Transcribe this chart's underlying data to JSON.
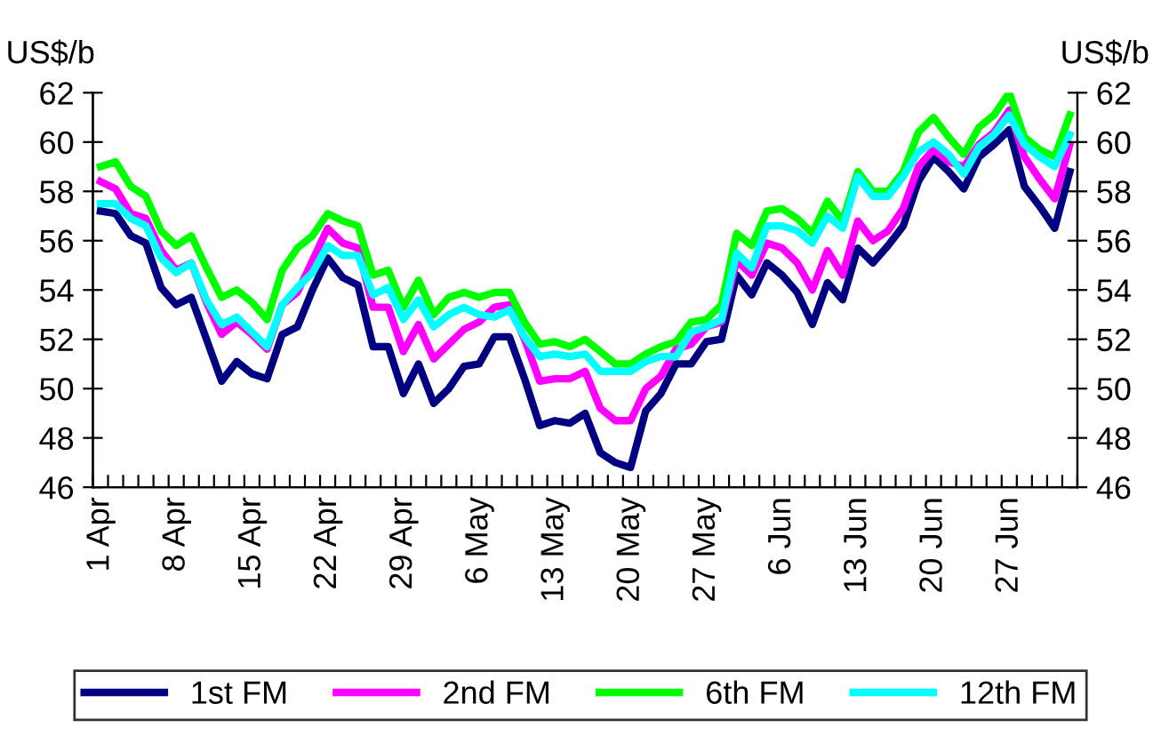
{
  "chart_data": {
    "type": "line",
    "ylabel": "US$/b",
    "y2label": "US$/b",
    "categories": [
      "1 Apr",
      null,
      null,
      null,
      null,
      "8 Apr",
      null,
      null,
      null,
      null,
      "15 Apr",
      null,
      null,
      null,
      null,
      "22 Apr",
      null,
      null,
      null,
      null,
      "29 Apr",
      null,
      null,
      null,
      null,
      "6 May",
      null,
      null,
      null,
      null,
      "13 May",
      null,
      null,
      null,
      null,
      "20 May",
      null,
      null,
      null,
      null,
      "27 May",
      null,
      null,
      null,
      null,
      "6 Jun",
      null,
      null,
      null,
      null,
      "13 Jun",
      null,
      null,
      null,
      null,
      "20 Jun",
      null,
      null,
      null,
      null,
      "27 Jun",
      null,
      null,
      null,
      null
    ],
    "series": [
      {
        "name": "1st FM",
        "color": "#000080",
        "values": [
          57.2,
          57.1,
          56.2,
          55.9,
          54.1,
          53.4,
          53.7,
          52.0,
          50.3,
          51.1,
          50.6,
          50.4,
          52.2,
          52.5,
          54.0,
          55.3,
          54.5,
          54.2,
          51.7,
          51.7,
          49.8,
          51.0,
          49.4,
          50.0,
          50.9,
          51.0,
          52.1,
          52.1,
          50.4,
          48.5,
          48.7,
          48.6,
          49.0,
          47.4,
          47.0,
          46.8,
          49.1,
          49.8,
          51.0,
          51.0,
          51.9,
          52.0,
          54.6,
          53.8,
          55.1,
          54.6,
          53.9,
          52.6,
          54.3,
          53.6,
          55.7,
          55.1,
          55.8,
          56.6,
          58.4,
          59.4,
          58.8,
          58.1,
          59.4,
          59.9,
          60.5,
          58.2,
          57.4,
          56.5,
          58.8
        ]
      },
      {
        "name": "2nd FM",
        "color": "#ff00ff",
        "values": [
          58.4,
          58.1,
          57.1,
          56.9,
          55.6,
          54.8,
          55.1,
          53.5,
          52.2,
          52.7,
          52.2,
          51.6,
          53.4,
          53.9,
          55.2,
          56.5,
          55.9,
          55.7,
          53.3,
          53.3,
          51.5,
          52.6,
          51.2,
          51.8,
          52.4,
          52.7,
          53.3,
          53.4,
          52.0,
          50.3,
          50.4,
          50.4,
          50.7,
          49.2,
          48.7,
          48.7,
          50.0,
          50.5,
          51.6,
          51.8,
          52.5,
          52.7,
          55.2,
          54.6,
          55.9,
          55.7,
          55.1,
          54.0,
          55.6,
          54.6,
          56.8,
          56.0,
          56.4,
          57.3,
          59.0,
          59.7,
          59.2,
          59.0,
          59.9,
          60.4,
          61.3,
          59.4,
          58.5,
          57.7,
          59.9
        ]
      },
      {
        "name": "6th FM",
        "color": "#00ff00",
        "values": [
          59.0,
          59.2,
          58.2,
          57.8,
          56.4,
          55.8,
          56.2,
          54.9,
          53.7,
          54.0,
          53.5,
          52.8,
          54.8,
          55.7,
          56.2,
          57.1,
          56.8,
          56.6,
          54.6,
          54.8,
          53.3,
          54.4,
          53.0,
          53.7,
          53.9,
          53.7,
          53.9,
          53.9,
          52.7,
          51.8,
          51.9,
          51.7,
          52.0,
          51.5,
          51.0,
          51.0,
          51.4,
          51.7,
          51.9,
          52.7,
          52.8,
          53.4,
          56.3,
          55.8,
          57.2,
          57.3,
          56.9,
          56.3,
          57.6,
          56.8,
          58.8,
          58.0,
          58.0,
          58.8,
          60.4,
          61.0,
          60.2,
          59.5,
          60.6,
          61.1,
          62.0,
          60.2,
          59.7,
          59.4,
          61.1
        ]
      },
      {
        "name": "12th FM",
        "color": "#00ffff",
        "values": [
          57.5,
          57.5,
          56.9,
          56.6,
          55.3,
          54.7,
          55.1,
          53.6,
          52.6,
          52.9,
          52.3,
          51.7,
          53.4,
          54.1,
          54.7,
          55.8,
          55.4,
          55.4,
          53.8,
          54.1,
          52.8,
          53.6,
          52.5,
          53.0,
          53.3,
          53.0,
          52.9,
          53.2,
          52.1,
          51.3,
          51.4,
          51.3,
          51.4,
          50.7,
          50.7,
          50.7,
          51.1,
          51.3,
          51.3,
          52.3,
          52.5,
          52.8,
          55.5,
          54.9,
          56.6,
          56.6,
          56.4,
          55.9,
          57.0,
          56.5,
          58.6,
          57.8,
          57.8,
          58.6,
          59.6,
          60.0,
          59.5,
          58.7,
          59.8,
          60.3,
          61.1,
          59.9,
          59.4,
          59.0,
          60.3
        ]
      }
    ],
    "ylim": [
      46,
      62
    ],
    "yticks": [
      46,
      48,
      50,
      52,
      54,
      56,
      58,
      60,
      62
    ],
    "y2lim": [
      46,
      62
    ],
    "y2ticks": [
      46,
      48,
      50,
      52,
      54,
      56,
      58,
      60,
      62
    ],
    "grid": false,
    "legend": "bottom",
    "marker": "none",
    "line_style": "solid"
  }
}
